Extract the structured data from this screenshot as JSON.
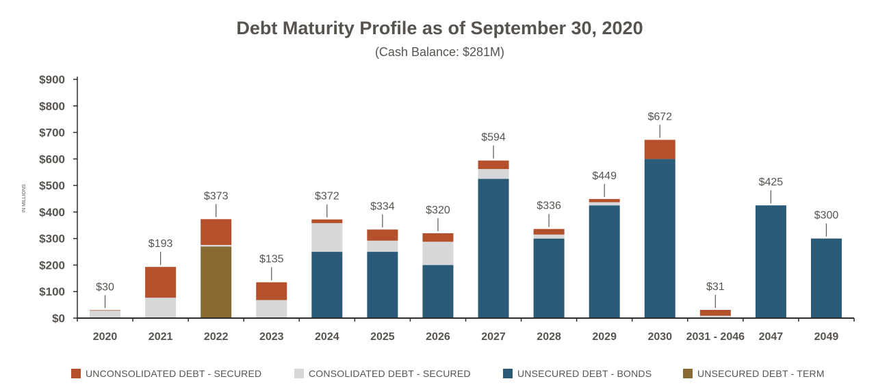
{
  "title": "Debt Maturity Profile as of September 30, 2020",
  "subtitle": "(Cash Balance: $281M)",
  "colors": {
    "unconsolidated_secured": "#b5502c",
    "consolidated_secured": "#d6d7d9",
    "unsecured_bonds": "#2a5a78",
    "unsecured_term": "#8a6a33",
    "text": "#57534f",
    "axis": "#2b2b2b"
  },
  "chart_data": {
    "type": "bar",
    "stacked": true,
    "title": "Debt Maturity Profile as of September 30, 2020",
    "subtitle": "(Cash Balance: $281M)",
    "ylabel": "IN MILLIONS",
    "ylim": [
      0,
      900
    ],
    "yticks": [
      "$0",
      "$100",
      "$200",
      "$300",
      "$400",
      "$500",
      "$600",
      "$700",
      "$800",
      "$900"
    ],
    "grid": false,
    "legend_position": "bottom",
    "categories": [
      "2020",
      "2021",
      "2022",
      "2023",
      "2024",
      "2025",
      "2026",
      "2027",
      "2028",
      "2029",
      "2030",
      "2031 - 2046",
      "2047",
      "2049"
    ],
    "series": [
      {
        "name": "UNSECURED DEBT - BONDS",
        "color": "#2a5a78",
        "values": [
          0,
          0,
          0,
          0,
          250,
          250,
          200,
          525,
          300,
          425,
          600,
          0,
          425,
          300
        ]
      },
      {
        "name": "UNSECURED DEBT - TERM",
        "color": "#8a6a33",
        "values": [
          0,
          0,
          270,
          0,
          0,
          0,
          0,
          0,
          0,
          0,
          0,
          0,
          0,
          0
        ]
      },
      {
        "name": "CONSOLIDATED DEBT - SECURED",
        "color": "#d6d7d9",
        "values": [
          28,
          77,
          6,
          68,
          108,
          42,
          88,
          37,
          15,
          12,
          0,
          9,
          0,
          0
        ]
      },
      {
        "name": "UNCONSOLIDATED DEBT - SECURED",
        "color": "#b5502c",
        "values": [
          2,
          116,
          97,
          67,
          14,
          42,
          32,
          32,
          21,
          12,
          72,
          22,
          0,
          0
        ]
      }
    ],
    "totals": [
      "$30",
      "$193",
      "$373",
      "$135",
      "$372",
      "$334",
      "$320",
      "$594",
      "$336",
      "$449",
      "$672",
      "$31",
      "$425",
      "$300"
    ]
  },
  "legend": [
    {
      "label": "UNCONSOLIDATED DEBT - SECURED",
      "color": "#b5502c"
    },
    {
      "label": "CONSOLIDATED DEBT - SECURED",
      "color": "#d6d7d9"
    },
    {
      "label": "UNSECURED DEBT - BONDS",
      "color": "#2a5a78"
    },
    {
      "label": "UNSECURED DEBT - TERM",
      "color": "#8a6a33"
    }
  ]
}
